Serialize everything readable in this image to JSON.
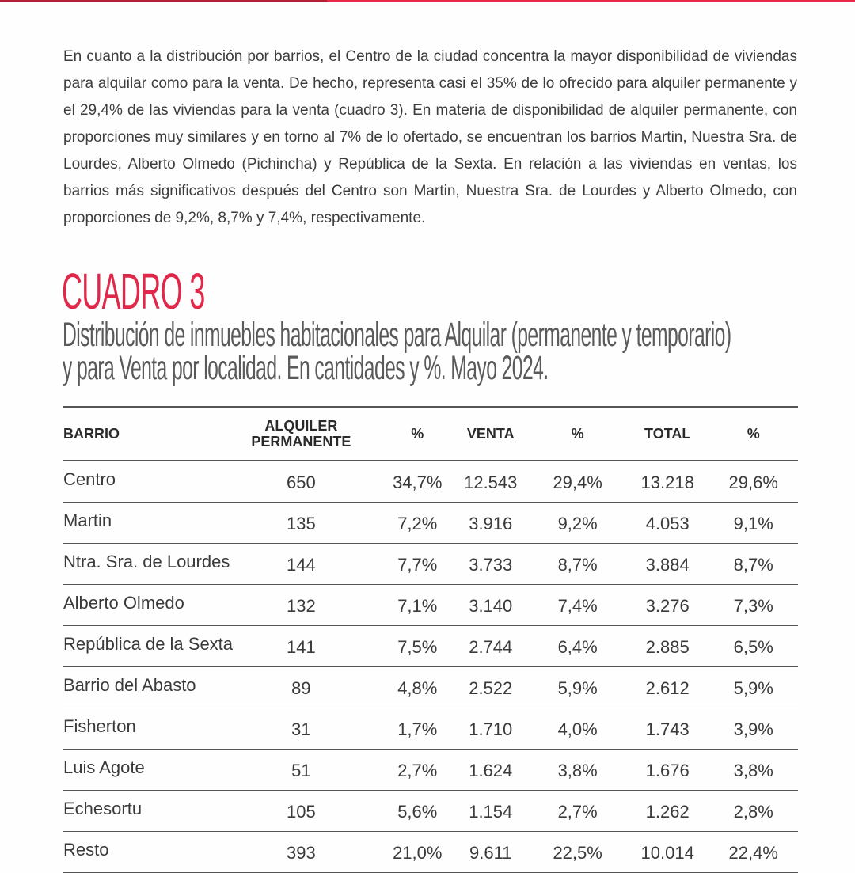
{
  "paragraph": "En cuanto a la distribución por barrios, el Centro de la ciudad concentra la mayor disponibilidad de viviendas para alquilar como para la venta. De hecho, representa casi el 35% de lo ofrecido para alquiler permanente y el 29,4% de las viviendas para la venta (cuadro 3). En materia de disponibilidad de alquiler permanente, con proporciones muy similares y en torno al 7% de lo ofertado, se encuentran los barrios Martin, Nuestra Sra. de Lourdes, Alberto Olmedo (Pichincha) y República de la Sexta. En relación a las viviendas en ventas, los barrios más significativos después del Centro son Martin, Nuestra Sra. de Lourdes y Alberto Olmedo, con proporciones de 9,2%, 8,7% y 7,4%, respectivamente.",
  "cuadro_label": "CUADRO 3",
  "subtitle_line1": "Distribución de inmuebles habitacionales para Alquilar (permanente y temporario)",
  "subtitle_line2": "y para Venta por localidad. En cantidades y %. Mayo 2024.",
  "colors": {
    "accent": "#e0284a",
    "accent_dark": "#b52036"
  },
  "table": {
    "headers": [
      "BARRIO",
      "ALQUILER PERMANENTE",
      "%",
      "VENTA",
      "%",
      "TOTAL",
      "%"
    ],
    "rows": [
      [
        "Centro",
        "650",
        "34,7%",
        "12.543",
        "29,4%",
        "13.218",
        "29,6%"
      ],
      [
        "Martin",
        "135",
        "7,2%",
        "3.916",
        "9,2%",
        "4.053",
        "9,1%"
      ],
      [
        "Ntra. Sra. de Lourdes",
        "144",
        "7,7%",
        "3.733",
        "8,7%",
        "3.884",
        "8,7%"
      ],
      [
        "Alberto Olmedo",
        "132",
        "7,1%",
        "3.140",
        "7,4%",
        "3.276",
        "7,3%"
      ],
      [
        "República de la Sexta",
        "141",
        "7,5%",
        "2.744",
        "6,4%",
        "2.885",
        "6,5%"
      ],
      [
        "Barrio del Abasto",
        "89",
        "4,8%",
        "2.522",
        "5,9%",
        "2.612",
        "5,9%"
      ],
      [
        "Fisherton",
        "31",
        "1,7%",
        "1.710",
        "4,0%",
        "1.743",
        "3,9%"
      ],
      [
        "Luis Agote",
        "51",
        "2,7%",
        "1.624",
        "3,8%",
        "1.676",
        "3,8%"
      ],
      [
        "Echesortu",
        "105",
        "5,6%",
        "1.154",
        "2,7%",
        "1.262",
        "2,8%"
      ],
      [
        "Resto",
        "393",
        "21,0%",
        "9.611",
        "22,5%",
        "10.014",
        "22,4%"
      ]
    ]
  }
}
